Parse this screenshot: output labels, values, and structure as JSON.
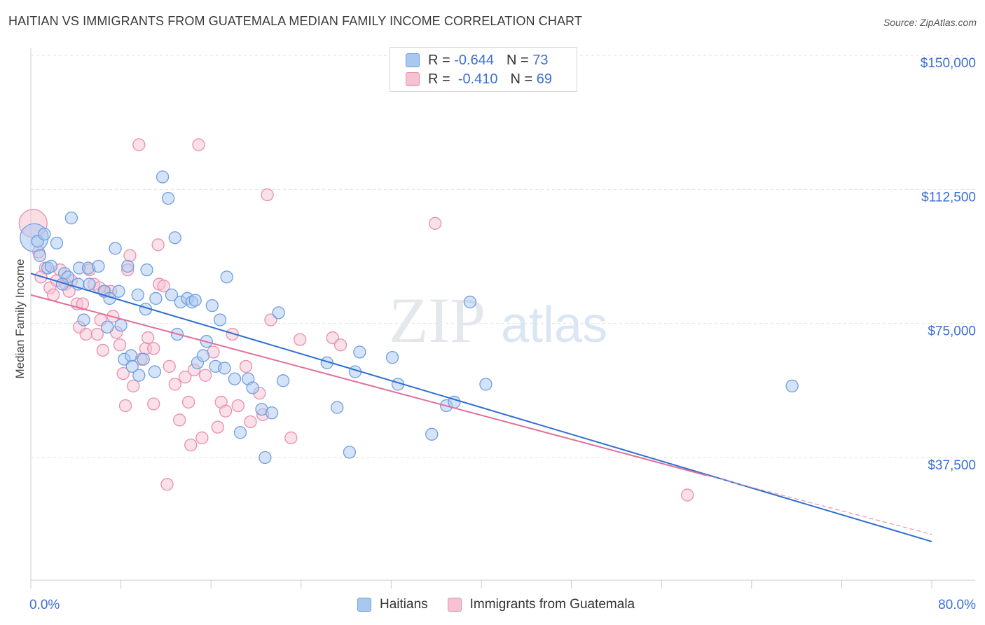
{
  "title": "HAITIAN VS IMMIGRANTS FROM GUATEMALA MEDIAN FAMILY INCOME CORRELATION CHART",
  "source": "Source: ZipAtlas.com",
  "watermark": {
    "zip": "ZIP",
    "atlas": "atlas"
  },
  "legend": {
    "rows": [
      {
        "r_label": "R =",
        "r_value": "-0.644",
        "n_label": "N =",
        "n_value": "73"
      },
      {
        "r_label": "R =",
        "r_value": "-0.410",
        "n_label": "N =",
        "n_value": "69"
      }
    ]
  },
  "bottom_legend": {
    "series1": "Haitians",
    "series2": "Immigrants from Guatemala"
  },
  "colors": {
    "blue_fill": "#a9c8f0",
    "blue_stroke": "#6f9fe0",
    "blue_line": "#2f6fd0",
    "pink_fill": "#f6c2d2",
    "pink_stroke": "#e98fad",
    "pink_line": "#e0709a",
    "axis_label": "#3b6fd4",
    "grid": "#dde3ea"
  },
  "chart_data": {
    "type": "scatter",
    "title": "HAITIAN VS IMMIGRANTS FROM GUATEMALA MEDIAN FAMILY INCOME CORRELATION CHART",
    "xlabel": "",
    "ylabel": "Median Family Income",
    "xlim": [
      0,
      80
    ],
    "ylim": [
      0,
      155000
    ],
    "x_tick_labels": [
      "0.0%",
      "80.0%"
    ],
    "y_ticks": [
      37500,
      75000,
      112500,
      150000
    ],
    "y_tick_labels": [
      "$37,500",
      "$75,000",
      "$112,500",
      "$150,000"
    ],
    "grid": true,
    "legend_placement": "top-center",
    "series": [
      {
        "name": "Haitians",
        "r": -0.644,
        "n": 73,
        "trend": {
          "x": [
            0,
            80
          ],
          "y": [
            89000,
            14000
          ]
        },
        "points": [
          [
            0.3,
            99000
          ],
          [
            0.6,
            98000
          ],
          [
            1.2,
            100000
          ],
          [
            0.8,
            94000
          ],
          [
            2.3,
            97500
          ],
          [
            3.6,
            104500
          ],
          [
            1.5,
            90500
          ],
          [
            3.0,
            89000
          ],
          [
            3.3,
            88000
          ],
          [
            2.8,
            86000
          ],
          [
            4.3,
            90500
          ],
          [
            5.1,
            90500
          ],
          [
            6.0,
            91000
          ],
          [
            4.2,
            86000
          ],
          [
            5.2,
            86000
          ],
          [
            6.5,
            84000
          ],
          [
            7.0,
            82000
          ],
          [
            7.8,
            84000
          ],
          [
            7.5,
            96000
          ],
          [
            8.6,
            91000
          ],
          [
            9.5,
            83000
          ],
          [
            10.3,
            90000
          ],
          [
            10.2,
            79000
          ],
          [
            11.1,
            82000
          ],
          [
            11.7,
            116000
          ],
          [
            12.2,
            110000
          ],
          [
            12.5,
            83000
          ],
          [
            12.8,
            99000
          ],
          [
            13.3,
            81000
          ],
          [
            13.9,
            82000
          ],
          [
            14.3,
            81000
          ],
          [
            14.6,
            81500
          ],
          [
            4.7,
            76000
          ],
          [
            6.8,
            74000
          ],
          [
            8.0,
            74500
          ],
          [
            8.3,
            65000
          ],
          [
            8.9,
            66000
          ],
          [
            9.6,
            60500
          ],
          [
            10.0,
            65000
          ],
          [
            11.0,
            61500
          ],
          [
            15.6,
            70000
          ],
          [
            16.1,
            80000
          ],
          [
            16.8,
            76000
          ],
          [
            17.4,
            88000
          ],
          [
            14.8,
            64000
          ],
          [
            15.3,
            66000
          ],
          [
            16.4,
            63000
          ],
          [
            17.2,
            62500
          ],
          [
            18.1,
            59500
          ],
          [
            19.3,
            59500
          ],
          [
            19.7,
            57000
          ],
          [
            20.5,
            51000
          ],
          [
            21.4,
            50000
          ],
          [
            22.0,
            78000
          ],
          [
            22.4,
            59000
          ],
          [
            18.6,
            44500
          ],
          [
            20.8,
            37500
          ],
          [
            26.3,
            64000
          ],
          [
            27.2,
            51500
          ],
          [
            28.8,
            61500
          ],
          [
            29.2,
            67000
          ],
          [
            28.3,
            39000
          ],
          [
            32.1,
            65500
          ],
          [
            32.6,
            58000
          ],
          [
            35.6,
            44000
          ],
          [
            36.9,
            52000
          ],
          [
            37.6,
            53000
          ],
          [
            39.0,
            81000
          ],
          [
            40.4,
            58000
          ],
          [
            67.6,
            57500
          ],
          [
            1.8,
            91000
          ],
          [
            9.0,
            63000
          ],
          [
            13.0,
            72000
          ]
        ]
      },
      {
        "name": "Immigrants from Guatemala",
        "r": -0.41,
        "n": 69,
        "trend": {
          "x": [
            0,
            60
          ],
          "y": [
            83000,
            32500
          ]
        },
        "trend_dashed_ext": {
          "x": [
            60,
            80
          ],
          "y": [
            32500,
            16000
          ]
        },
        "points": [
          [
            0.2,
            103000
          ],
          [
            0.7,
            95000
          ],
          [
            1.3,
            90500
          ],
          [
            0.9,
            88000
          ],
          [
            1.7,
            85000
          ],
          [
            2.0,
            83000
          ],
          [
            2.3,
            87000
          ],
          [
            2.6,
            90000
          ],
          [
            3.1,
            86000
          ],
          [
            3.4,
            84000
          ],
          [
            3.6,
            87000
          ],
          [
            4.1,
            80500
          ],
          [
            4.6,
            80500
          ],
          [
            5.2,
            90000
          ],
          [
            5.6,
            86000
          ],
          [
            6.1,
            85000
          ],
          [
            6.6,
            84000
          ],
          [
            7.1,
            84000
          ],
          [
            4.3,
            74000
          ],
          [
            4.9,
            72000
          ],
          [
            5.9,
            72000
          ],
          [
            6.4,
            67500
          ],
          [
            7.3,
            77000
          ],
          [
            7.6,
            72500
          ],
          [
            7.9,
            69000
          ],
          [
            8.2,
            61000
          ],
          [
            8.6,
            90000
          ],
          [
            8.8,
            94000
          ],
          [
            9.1,
            57500
          ],
          [
            9.6,
            125000
          ],
          [
            9.8,
            65000
          ],
          [
            10.2,
            68000
          ],
          [
            10.4,
            71000
          ],
          [
            10.9,
            68000
          ],
          [
            11.3,
            97000
          ],
          [
            11.4,
            86000
          ],
          [
            11.8,
            85500
          ],
          [
            12.3,
            63000
          ],
          [
            12.8,
            58000
          ],
          [
            13.2,
            48000
          ],
          [
            13.7,
            60000
          ],
          [
            14.0,
            53000
          ],
          [
            14.5,
            62000
          ],
          [
            14.9,
            125000
          ],
          [
            15.2,
            43000
          ],
          [
            15.5,
            60500
          ],
          [
            16.2,
            67000
          ],
          [
            16.6,
            46000
          ],
          [
            16.9,
            53000
          ],
          [
            17.3,
            50500
          ],
          [
            17.9,
            72000
          ],
          [
            18.4,
            52000
          ],
          [
            19.1,
            63000
          ],
          [
            19.5,
            47500
          ],
          [
            20.3,
            55500
          ],
          [
            21.0,
            111000
          ],
          [
            21.3,
            76000
          ],
          [
            23.1,
            43000
          ],
          [
            23.9,
            70500
          ],
          [
            26.8,
            71000
          ],
          [
            27.5,
            69000
          ],
          [
            8.4,
            52000
          ],
          [
            10.9,
            52500
          ],
          [
            12.1,
            30000
          ],
          [
            20.6,
            49500
          ],
          [
            35.9,
            103000
          ],
          [
            58.3,
            27000
          ],
          [
            14.2,
            41000
          ],
          [
            6.2,
            76000
          ]
        ]
      }
    ]
  }
}
